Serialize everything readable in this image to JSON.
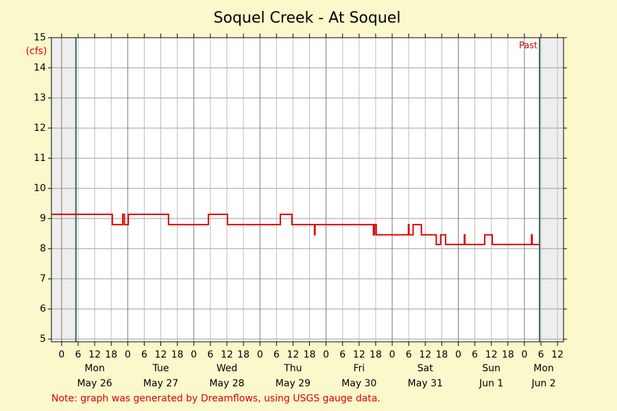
{
  "chart_data": {
    "type": "line",
    "title": "Soquel Creek - At Soquel",
    "y_label": "(cfs)",
    "annotation": "Past",
    "note": "Note: graph was generated by Dreamflows, using USGS gauge data.",
    "xlim": [
      -3.7,
      182.2
    ],
    "ylim": [
      4.91,
      15
    ],
    "yticks": [
      5,
      6,
      7,
      8,
      9,
      10,
      11,
      12,
      13,
      14,
      15
    ],
    "xticks": [
      {
        "value": 0,
        "label": "0"
      },
      {
        "value": 6,
        "label": "6"
      },
      {
        "value": 12,
        "label": "12"
      },
      {
        "value": 18,
        "label": "18"
      },
      {
        "value": 24,
        "label": "0"
      },
      {
        "value": 30,
        "label": "6"
      },
      {
        "value": 36,
        "label": "12"
      },
      {
        "value": 42,
        "label": "18"
      },
      {
        "value": 48,
        "label": "0"
      },
      {
        "value": 54,
        "label": "6"
      },
      {
        "value": 60,
        "label": "12"
      },
      {
        "value": 66,
        "label": "18"
      },
      {
        "value": 72,
        "label": "0"
      },
      {
        "value": 78,
        "label": "6"
      },
      {
        "value": 84,
        "label": "12"
      },
      {
        "value": 90,
        "label": "18"
      },
      {
        "value": 96,
        "label": "0"
      },
      {
        "value": 102,
        "label": "6"
      },
      {
        "value": 108,
        "label": "12"
      },
      {
        "value": 114,
        "label": "18"
      },
      {
        "value": 120,
        "label": "0"
      },
      {
        "value": 126,
        "label": "6"
      },
      {
        "value": 132,
        "label": "12"
      },
      {
        "value": 138,
        "label": "18"
      },
      {
        "value": 144,
        "label": "0"
      },
      {
        "value": 150,
        "label": "6"
      },
      {
        "value": 156,
        "label": "12"
      },
      {
        "value": 162,
        "label": "18"
      },
      {
        "value": 168,
        "label": "0"
      },
      {
        "value": 174,
        "label": "6"
      },
      {
        "value": 180,
        "label": "12"
      }
    ],
    "day_labels": [
      {
        "value": 12,
        "weekday": "Mon",
        "date": "May 26"
      },
      {
        "value": 36,
        "weekday": "Tue",
        "date": "May 27"
      },
      {
        "value": 60,
        "weekday": "Wed",
        "date": "May 28"
      },
      {
        "value": 84,
        "weekday": "Thu",
        "date": "May 29"
      },
      {
        "value": 108,
        "weekday": "Fri",
        "date": "May 30"
      },
      {
        "value": 132,
        "weekday": "Sat",
        "date": "May 31"
      },
      {
        "value": 156,
        "weekday": "Sun",
        "date": "Jun 1"
      },
      {
        "value": 175,
        "weekday": "Mon",
        "date": "Jun 2"
      }
    ],
    "window": [
      5.2,
      173.5
    ],
    "grid": true,
    "series": [
      {
        "name": "Flow",
        "color": "#e00000",
        "x": [
          -3.7,
          18.4,
          18.4,
          22.2,
          22.2,
          22.8,
          22.8,
          24.2,
          24.2,
          38.8,
          38.8,
          53.3,
          53.3,
          60.2,
          60.2,
          79.4,
          79.4,
          83.6,
          83.6,
          91.8,
          91.8,
          92,
          92,
          113.2,
          113.2,
          113.6,
          113.6,
          114.2,
          114.2,
          125.9,
          125.9,
          126.1,
          126.1,
          127.6,
          127.6,
          130.6,
          130.6,
          136,
          136,
          137.6,
          137.6,
          139.4,
          139.4,
          146.2,
          146.2,
          146.4,
          146.4,
          153.6,
          153.6,
          156.3,
          156.3,
          170.6,
          170.6,
          170.8,
          170.8,
          173.5
        ],
        "values": [
          9.14,
          9.14,
          8.8,
          8.8,
          9.14,
          9.14,
          8.8,
          8.8,
          9.14,
          9.14,
          8.8,
          8.8,
          9.14,
          9.14,
          8.8,
          8.8,
          9.14,
          9.14,
          8.8,
          8.8,
          8.46,
          8.46,
          8.8,
          8.8,
          8.46,
          8.46,
          8.8,
          8.8,
          8.46,
          8.46,
          8.8,
          8.8,
          8.46,
          8.46,
          8.8,
          8.8,
          8.46,
          8.46,
          8.14,
          8.14,
          8.46,
          8.46,
          8.14,
          8.14,
          8.46,
          8.46,
          8.14,
          8.14,
          8.46,
          8.46,
          8.14,
          8.14,
          8.46,
          8.46,
          8.14,
          8.14
        ]
      }
    ]
  }
}
